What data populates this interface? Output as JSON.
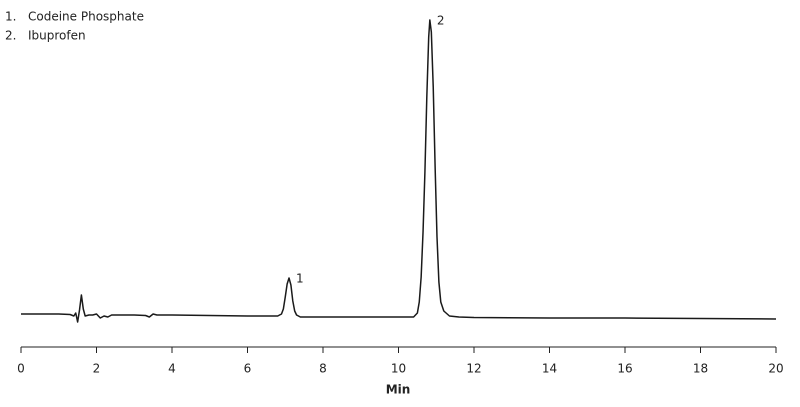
{
  "chart_data": {
    "type": "line",
    "x_label": "Min",
    "legend": [
      {
        "number": "1.",
        "name": "Codeine Phosphate"
      },
      {
        "number": "2.",
        "name": "Ibuprofen"
      }
    ],
    "annotations": [
      {
        "text": "1",
        "x": 7.1,
        "y": 69
      },
      {
        "text": "2",
        "x": 10.83,
        "y": 327
      }
    ],
    "x": [
      0,
      1.0,
      1.3,
      1.4,
      1.45,
      1.5,
      1.55,
      1.6,
      1.65,
      1.7,
      1.8,
      1.9,
      2.0,
      2.1,
      2.2,
      2.3,
      2.4,
      2.6,
      3.0,
      3.3,
      3.4,
      3.5,
      3.6,
      4.0,
      5.0,
      6.0,
      6.8,
      6.9,
      6.95,
      7.0,
      7.05,
      7.1,
      7.15,
      7.2,
      7.25,
      7.3,
      7.4,
      8.0,
      9.0,
      10.0,
      10.4,
      10.5,
      10.55,
      10.6,
      10.65,
      10.7,
      10.75,
      10.8,
      10.83,
      10.87,
      10.92,
      10.97,
      11.02,
      11.07,
      11.12,
      11.2,
      11.35,
      11.6,
      12.0,
      14.0,
      16.0,
      18.0,
      20.0
    ],
    "values": [
      33,
      33,
      32.5,
      31,
      34,
      25,
      37,
      52,
      38,
      31,
      32,
      32,
      33,
      29,
      31,
      30,
      32,
      32,
      32,
      31.5,
      30,
      33,
      32,
      32,
      31.5,
      31,
      31,
      33,
      38,
      50,
      63,
      69,
      62,
      46,
      36,
      32,
      30,
      30,
      30,
      30,
      30,
      34,
      45,
      70,
      115,
      175,
      250,
      310,
      327,
      315,
      260,
      180,
      110,
      65,
      45,
      36,
      31,
      30,
      29.5,
      29,
      29,
      28.5,
      28
    ],
    "color": "#1a1a1a",
    "xlim": [
      0,
      20
    ],
    "xticks": [
      0,
      2,
      4,
      6,
      8,
      10,
      12,
      14,
      16,
      18,
      20
    ],
    "ylim": [
      0,
      330
    ]
  }
}
